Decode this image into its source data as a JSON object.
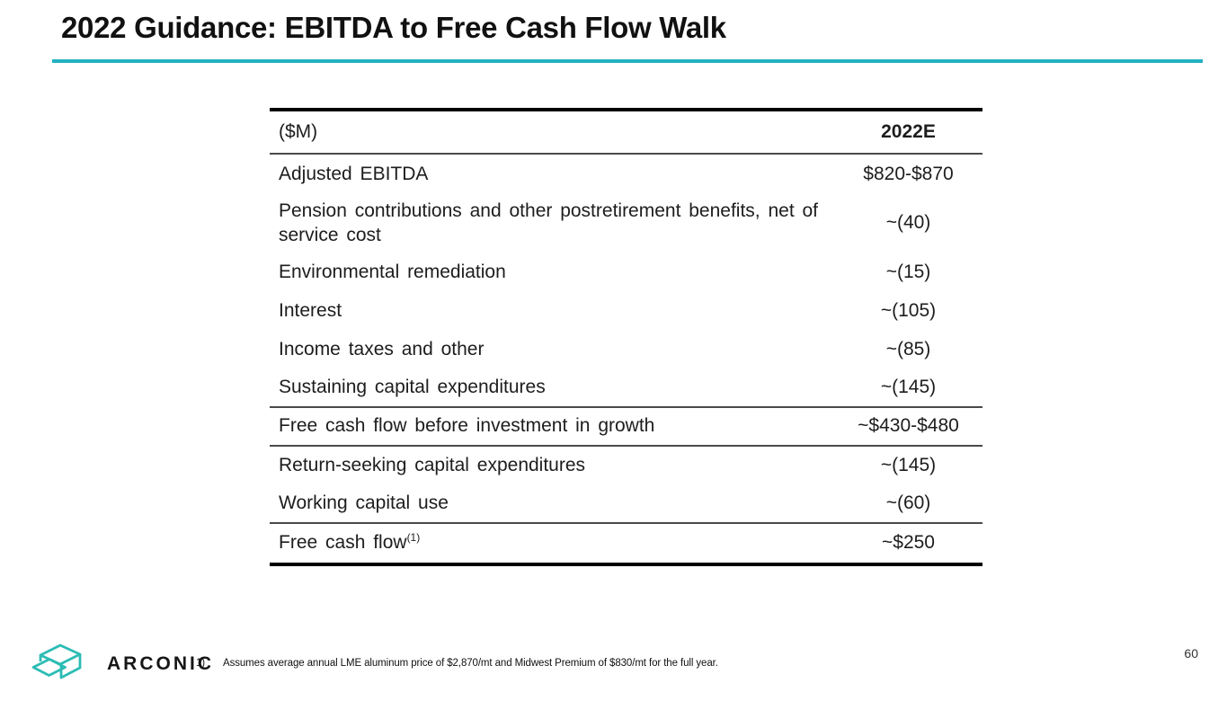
{
  "slide": {
    "title": "2022 Guidance: EBITDA to Free Cash Flow Walk",
    "page_number": "60"
  },
  "table": {
    "header": {
      "label": "($M)",
      "value": "2022E"
    },
    "rows": [
      {
        "label": "Adjusted EBITDA",
        "value": "$820-$870",
        "rule_below": false
      },
      {
        "label": "Pension contributions and other postretirement benefits, net of service cost",
        "value": "~(40)",
        "rule_below": false
      },
      {
        "label": "Environmental remediation",
        "value": "~(15)",
        "rule_below": false
      },
      {
        "label": "Interest",
        "value": "~(105)",
        "rule_below": false
      },
      {
        "label": "Income taxes and other",
        "value": "~(85)",
        "rule_below": false
      },
      {
        "label": "Sustaining capital expenditures",
        "value": "~(145)",
        "rule_below": true
      },
      {
        "label": "Free cash flow before investment in growth",
        "value": "~$430-$480",
        "rule_below": true
      },
      {
        "label": "Return-seeking capital expenditures",
        "value": "~(145)",
        "rule_below": false
      },
      {
        "label": "Working capital use",
        "value": "~(60)",
        "rule_below": true
      },
      {
        "label": "Free cash flow",
        "sup": "(1)",
        "value": "~$250",
        "rule_below": false
      }
    ]
  },
  "chart_data": {
    "type": "table",
    "title": "2022 Guidance: EBITDA to Free Cash Flow Walk",
    "columns": [
      "($M)",
      "2022E"
    ],
    "rows": [
      [
        "Adjusted EBITDA",
        "$820-$870"
      ],
      [
        "Pension contributions and other postretirement benefits, net of service cost",
        "~(40)"
      ],
      [
        "Environmental remediation",
        "~(15)"
      ],
      [
        "Interest",
        "~(105)"
      ],
      [
        "Income taxes and other",
        "~(85)"
      ],
      [
        "Sustaining capital expenditures",
        "~(145)"
      ],
      [
        "Free cash flow before investment in growth",
        "~$430-$480"
      ],
      [
        "Return-seeking capital expenditures",
        "~(145)"
      ],
      [
        "Working capital use",
        "~(60)"
      ],
      [
        "Free cash flow(1)",
        "~$250"
      ]
    ]
  },
  "footer": {
    "logo_text": "ARCONIC",
    "footnote_marker": "1)",
    "footnote_text": "Assumes average annual LME aluminum price of $2,870/mt and Midwest Premium of $830/mt for the full year."
  },
  "colors": {
    "accent_teal": "#22b1c1",
    "logo_teal": "#2cbcb4",
    "text_dark": "#1d1d1d"
  }
}
